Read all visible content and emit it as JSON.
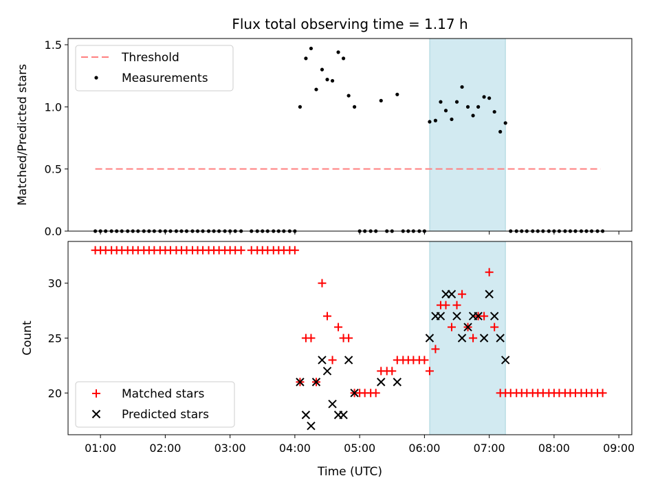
{
  "title": "Flux total observing time = 1.17 h",
  "colors": {
    "threshold": "#ff7f7f",
    "measurement": "#000000",
    "matched": "#ff0000",
    "predicted": "#000000",
    "highlight": "#add8e6"
  },
  "chart_data": [
    {
      "type": "scatter",
      "panel": "top",
      "ylabel": "Matched/Predicted stars",
      "xlabel": "",
      "xlim": [
        0.5,
        9.2
      ],
      "ylim": [
        0,
        1.55
      ],
      "yticks": [
        0,
        0.5,
        1.0,
        1.5
      ],
      "ytick_labels": [
        "0.0",
        "0.5",
        "1.0",
        "1.5"
      ],
      "highlight_span": [
        6.08,
        7.25
      ],
      "legend_position": "upper-left",
      "threshold": {
        "name": "Threshold",
        "y": 0.5,
        "x": [
          0.92,
          8.72
        ]
      },
      "measurements": {
        "name": "Measurements",
        "x": [
          4.08,
          4.17,
          4.25,
          4.33,
          4.42,
          4.5,
          4.58,
          4.67,
          4.75,
          4.83,
          4.92,
          5.33,
          5.58,
          6.08,
          6.17,
          6.25,
          6.33,
          6.42,
          6.5,
          6.58,
          6.67,
          6.75,
          6.83,
          6.92,
          7.0,
          7.08,
          7.17,
          7.25
        ],
        "y": [
          1.0,
          1.39,
          1.47,
          1.14,
          1.3,
          1.22,
          1.21,
          1.44,
          1.39,
          1.09,
          1.0,
          1.05,
          1.1,
          0.88,
          0.89,
          1.04,
          0.97,
          0.9,
          1.04,
          1.16,
          1.0,
          0.93,
          1.0,
          1.08,
          1.07,
          0.96,
          0.8,
          0.87
        ]
      },
      "zero_points": {
        "x": [
          0.92,
          1.0,
          1.08,
          1.17,
          1.25,
          1.33,
          1.42,
          1.5,
          1.58,
          1.67,
          1.75,
          1.83,
          1.92,
          2.0,
          2.08,
          2.17,
          2.25,
          2.33,
          2.42,
          2.5,
          2.58,
          2.67,
          2.75,
          2.83,
          2.92,
          3.0,
          3.08,
          3.17,
          3.33,
          3.42,
          3.5,
          3.58,
          3.67,
          3.75,
          3.83,
          3.92,
          4.0,
          5.0,
          5.08,
          5.17,
          5.25,
          5.42,
          5.5,
          5.67,
          5.75,
          5.83,
          5.92,
          6.0,
          7.33,
          7.42,
          7.5,
          7.58,
          7.67,
          7.75,
          7.83,
          7.92,
          8.0,
          8.08,
          8.17,
          8.25,
          8.33,
          8.42,
          8.5,
          8.58,
          8.67,
          8.75
        ],
        "y": 0
      }
    },
    {
      "type": "scatter",
      "panel": "bottom",
      "ylabel": "Count",
      "xlabel": "Time (UTC)",
      "xlim": [
        0.5,
        9.2
      ],
      "ylim": [
        16.2,
        33.8
      ],
      "yticks": [
        20,
        25,
        30
      ],
      "ytick_labels": [
        "20",
        "25",
        "30"
      ],
      "xticks": [
        1,
        2,
        3,
        4,
        5,
        6,
        7,
        8,
        9
      ],
      "xtick_labels": [
        "01:00",
        "02:00",
        "03:00",
        "04:00",
        "05:00",
        "06:00",
        "07:00",
        "08:00",
        "09:00"
      ],
      "highlight_span": [
        6.08,
        7.25
      ],
      "legend_position": "lower-left",
      "series": [
        {
          "name": "Matched stars",
          "marker": "plus",
          "x": [
            0.92,
            1.0,
            1.08,
            1.17,
            1.25,
            1.33,
            1.42,
            1.5,
            1.58,
            1.67,
            1.75,
            1.83,
            1.92,
            2.0,
            2.08,
            2.17,
            2.25,
            2.33,
            2.42,
            2.5,
            2.58,
            2.67,
            2.75,
            2.83,
            2.92,
            3.0,
            3.08,
            3.17,
            3.33,
            3.42,
            3.5,
            3.58,
            3.67,
            3.75,
            3.83,
            3.92,
            4.0,
            4.08,
            4.17,
            4.25,
            4.33,
            4.42,
            4.5,
            4.58,
            4.67,
            4.75,
            4.83,
            4.92,
            5.0,
            5.08,
            5.17,
            5.25,
            5.33,
            5.42,
            5.5,
            5.58,
            5.67,
            5.75,
            5.83,
            5.92,
            6.0,
            6.08,
            6.17,
            6.25,
            6.33,
            6.42,
            6.5,
            6.58,
            6.67,
            6.75,
            6.83,
            6.92,
            7.0,
            7.08,
            7.17,
            7.25,
            7.33,
            7.42,
            7.5,
            7.58,
            7.67,
            7.75,
            7.83,
            7.92,
            8.0,
            8.08,
            8.17,
            8.25,
            8.33,
            8.42,
            8.5,
            8.58,
            8.67,
            8.75
          ],
          "y": [
            33,
            33,
            33,
            33,
            33,
            33,
            33,
            33,
            33,
            33,
            33,
            33,
            33,
            33,
            33,
            33,
            33,
            33,
            33,
            33,
            33,
            33,
            33,
            33,
            33,
            33,
            33,
            33,
            33,
            33,
            33,
            33,
            33,
            33,
            33,
            33,
            33,
            21,
            25,
            25,
            21,
            30,
            27,
            23,
            26,
            25,
            25,
            20,
            20,
            20,
            20,
            20,
            22,
            22,
            22,
            23,
            23,
            23,
            23,
            23,
            23,
            22,
            24,
            28,
            28,
            26,
            28,
            29,
            26,
            25,
            27,
            27,
            31,
            26,
            20,
            20,
            20,
            20,
            20,
            20,
            20,
            20,
            20,
            20,
            20,
            20,
            20,
            20,
            20,
            20,
            20,
            20,
            20,
            20
          ]
        },
        {
          "name": "Predicted stars",
          "marker": "x",
          "x": [
            4.08,
            4.17,
            4.25,
            4.33,
            4.42,
            4.5,
            4.58,
            4.67,
            4.75,
            4.83,
            4.92,
            5.33,
            5.58,
            6.08,
            6.17,
            6.25,
            6.33,
            6.42,
            6.5,
            6.58,
            6.67,
            6.75,
            6.83,
            6.92,
            7.0,
            7.08,
            7.17,
            7.25
          ],
          "y": [
            21,
            18,
            17,
            21,
            23,
            22,
            19,
            18,
            18,
            23,
            20,
            21,
            21,
            25,
            27,
            27,
            29,
            29,
            27,
            25,
            26,
            27,
            27,
            25,
            29,
            27,
            25,
            23
          ]
        }
      ]
    }
  ]
}
